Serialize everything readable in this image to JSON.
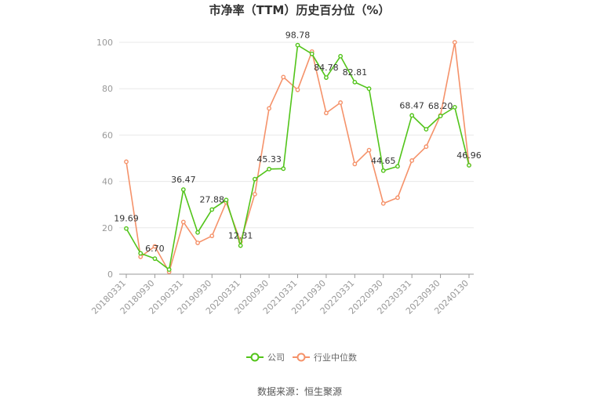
{
  "chart_data": {
    "type": "line",
    "title": "市净率（TTM）历史百分位（%）",
    "x_ticks": [
      "20180331",
      "20180930",
      "20190331",
      "20190930",
      "20200331",
      "20200930",
      "20210331",
      "20210930",
      "20220331",
      "20220930",
      "20230331",
      "20230930",
      "20240130"
    ],
    "ylim": [
      0,
      100
    ],
    "y_ticks": [
      0,
      20,
      40,
      60,
      80,
      100
    ],
    "grid": true,
    "legend_position": "bottom-center",
    "series": [
      {
        "name": "公司",
        "color": "#52c41a",
        "values": [
          19.69,
          9.0,
          6.7,
          2.0,
          36.47,
          18.0,
          27.88,
          32.0,
          12.31,
          41.0,
          45.33,
          45.5,
          98.78,
          95.0,
          84.78,
          94.0,
          82.81,
          80.0,
          44.65,
          46.5,
          68.47,
          62.5,
          68.2,
          72.0,
          46.96
        ],
        "labels": {
          "0": "19.69",
          "2": "6.70",
          "4": "36.47",
          "6": "27.88",
          "8": "12.31",
          "10": "45.33",
          "12": "98.78",
          "14": "84.78",
          "16": "82.81",
          "18": "44.65",
          "20": "68.47",
          "22": "68.20",
          "24": "46.96"
        }
      },
      {
        "name": "行业中位数",
        "color": "#f5926a",
        "values": [
          48.5,
          7.5,
          12.0,
          1.0,
          22.5,
          13.5,
          16.5,
          31.0,
          14.0,
          34.5,
          71.5,
          85.0,
          79.5,
          96.0,
          69.5,
          74.0,
          47.5,
          53.5,
          30.5,
          33.0,
          49.0,
          55.0,
          68.5,
          100.0,
          47.0
        ]
      }
    ],
    "source": "数据来源：恒生聚源"
  }
}
